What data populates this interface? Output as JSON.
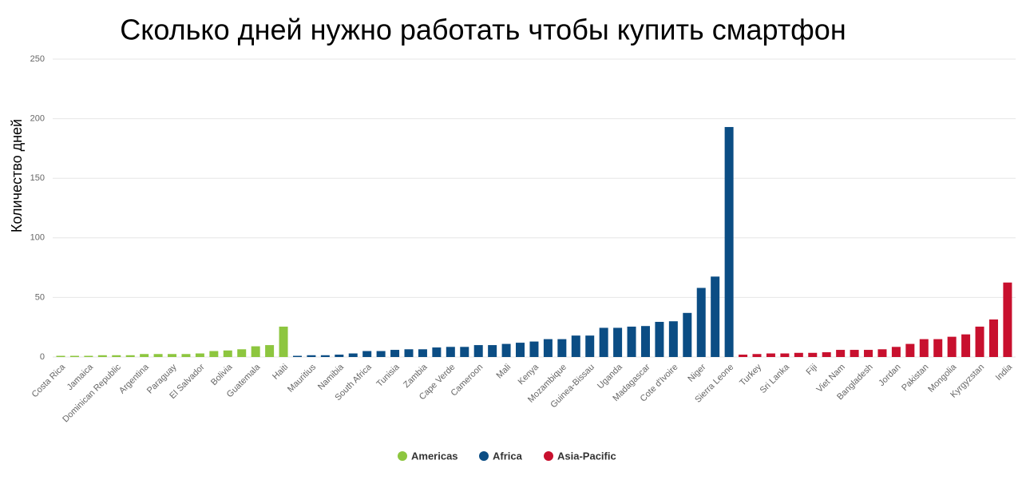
{
  "chart_data": {
    "type": "bar",
    "title": "Сколько дней нужно работать чтобы купить смартфон",
    "y_label": "Количество дней",
    "categories": [
      "Costa Rica",
      null,
      "Jamaica",
      null,
      "Dominican Republic",
      null,
      "Argentina",
      null,
      "Paraguay",
      null,
      "El Salvador",
      null,
      "Bolivia",
      null,
      "Guatemala",
      null,
      "Haiti",
      null,
      "Mauritius",
      null,
      "Namibia",
      null,
      "South Africa",
      null,
      "Tunisia",
      null,
      "Zambia",
      null,
      "Cape Verde",
      null,
      "Cameroon",
      null,
      "Mali",
      null,
      "Kenya",
      null,
      "Mozambique",
      null,
      "Guinea-Bissau",
      null,
      "Uganda",
      null,
      "Madagascar",
      null,
      "Cote d'Ivoire",
      null,
      "Niger",
      null,
      "Sierra Leone",
      null,
      "Turkey",
      null,
      "Sri Lanka",
      null,
      "Fiji",
      null,
      "Viet Nam",
      null,
      "Bangladesh",
      null,
      "Jordan",
      null,
      "Pakistan",
      null,
      "Mongolia",
      null,
      "Kyrgyzstan",
      null,
      "India"
    ],
    "series": [
      {
        "name": "Americas",
        "color": "#8dc63f",
        "values": [
          1,
          1,
          1,
          1.5,
          1.5,
          1.5,
          2.5,
          2.5,
          2.5,
          2.5,
          3,
          5,
          5.5,
          6.5,
          9,
          10,
          25.5,
          null,
          null,
          null,
          null,
          null,
          null,
          null,
          null,
          null,
          null,
          null,
          null,
          null,
          null,
          null,
          null,
          null,
          null,
          null,
          null,
          null,
          null,
          null,
          null,
          null,
          null,
          null,
          null,
          null,
          null,
          null,
          null,
          null,
          null,
          null,
          null,
          null,
          null,
          null,
          null,
          null,
          null,
          null,
          null,
          null,
          null,
          null,
          null,
          null,
          null,
          null,
          null
        ]
      },
      {
        "name": "Africa",
        "color": "#0b4d84",
        "values": [
          null,
          null,
          null,
          null,
          null,
          null,
          null,
          null,
          null,
          null,
          null,
          null,
          null,
          null,
          null,
          null,
          null,
          1,
          1.5,
          1.5,
          2,
          3,
          5,
          5,
          6,
          6.5,
          6.5,
          8,
          8.5,
          8.5,
          10,
          10,
          11,
          12,
          13,
          15,
          15,
          18,
          18,
          24.5,
          24.5,
          25.5,
          26,
          29.5,
          30,
          37,
          58,
          67.5,
          193,
          null,
          null,
          null,
          null,
          null,
          null,
          null,
          null,
          null,
          null,
          null,
          null,
          null,
          null,
          null,
          null,
          null,
          null,
          null,
          null
        ]
      },
      {
        "name": "Asia-Pacific",
        "color": "#c8102e",
        "values": [
          null,
          null,
          null,
          null,
          null,
          null,
          null,
          null,
          null,
          null,
          null,
          null,
          null,
          null,
          null,
          null,
          null,
          null,
          null,
          null,
          null,
          null,
          null,
          null,
          null,
          null,
          null,
          null,
          null,
          null,
          null,
          null,
          null,
          null,
          null,
          null,
          null,
          null,
          null,
          null,
          null,
          null,
          null,
          null,
          null,
          null,
          null,
          null,
          null,
          2,
          2.5,
          3,
          3,
          3.5,
          3.5,
          4,
          6,
          6,
          6,
          6.5,
          8.5,
          11,
          15,
          15,
          17,
          19,
          25.5,
          31.5,
          62.5
        ]
      }
    ],
    "ylim": [
      0,
      250
    ],
    "yticks": [
      0,
      50,
      100,
      150,
      200,
      250
    ],
    "grid": true
  }
}
